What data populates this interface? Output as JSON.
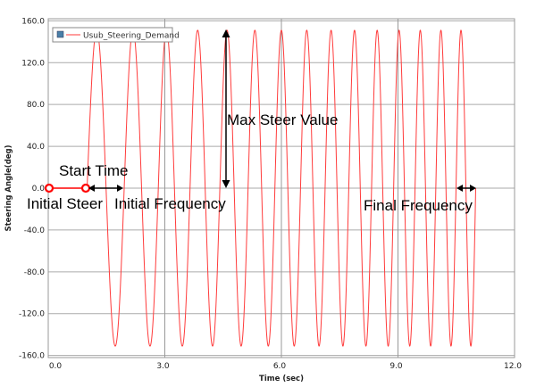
{
  "chart_data": {
    "type": "line",
    "title": "",
    "xlabel": "Time (sec)",
    "ylabel": "Steering Angle(deg)",
    "xlim": [
      0,
      12
    ],
    "ylim": [
      -162,
      162
    ],
    "xticks": [
      "0.0",
      "3.0",
      "6.0",
      "9.0",
      "12.0"
    ],
    "xtick_values": [
      0,
      3,
      6,
      9,
      12
    ],
    "yticks": [
      "160.0",
      "120.0",
      "80.0",
      "40.0",
      "0.0",
      "-40.0",
      "-80.0",
      "-120.0",
      "-160.0"
    ],
    "ytick_values": [
      160,
      120,
      80,
      40,
      0,
      -40,
      -80,
      -120,
      -160
    ],
    "grid": true,
    "legend": {
      "placement": "top-left",
      "entries": [
        "Usub_Steering_Demand"
      ]
    },
    "series": [
      {
        "name": "Usub_Steering_Demand",
        "color": "#ff3b3b",
        "shape": "linear chirp sine",
        "initial_steer": 0,
        "start_time": 1.0,
        "end_time": 11.0,
        "amplitude": 151,
        "initial_frequency_hz": 1.0,
        "final_frequency_hz": 2.0
      }
    ],
    "annotations": [
      {
        "text": "Start Time"
      },
      {
        "text": "Initial Steer"
      },
      {
        "text": "Initial Frequency"
      },
      {
        "text": "Max Steer Value"
      },
      {
        "text": "Final Frequency"
      }
    ],
    "marker_color": "#ff0000"
  }
}
